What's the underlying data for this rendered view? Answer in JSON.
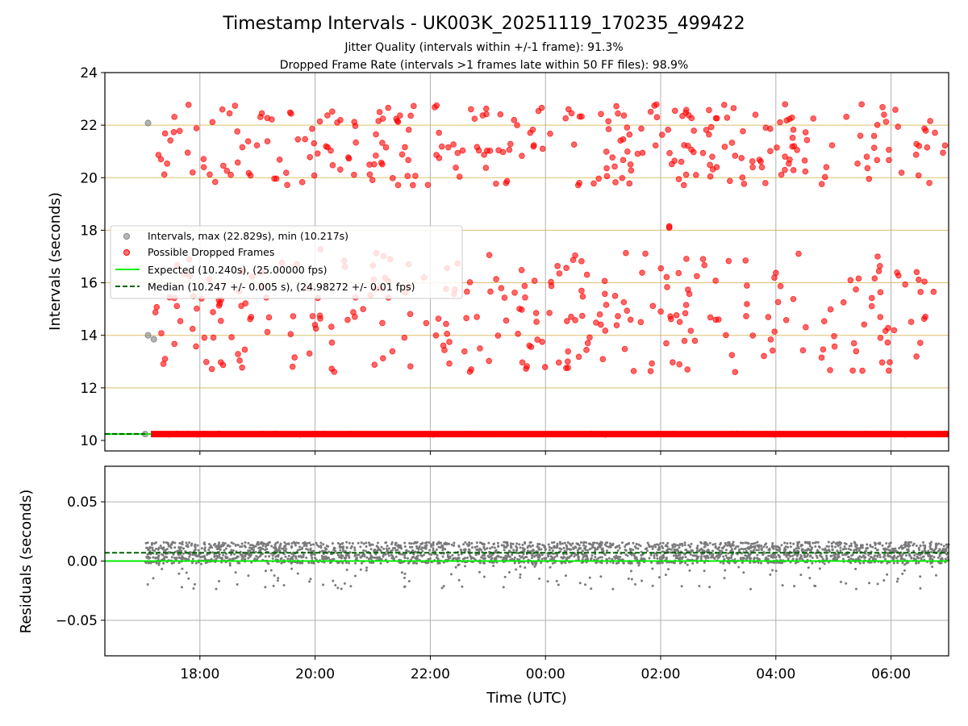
{
  "chart_data": [
    {
      "type": "scatter",
      "title": "Timestamp Intervals - UK003K_20251119_170235_499422",
      "subtitles": [
        "Jitter Quality (intervals within +/-1 frame): 91.3%",
        "Dropped Frame Rate (intervals >1 frames late within 50 FF files): 98.9%"
      ],
      "xlabel": "",
      "ylabel": "Intervals (seconds)",
      "x_start_utc": "16:20",
      "x_end_utc": "07:00",
      "x_unit": "hours since 00:00 UTC of first day",
      "xlim": [
        16.35,
        31.0
      ],
      "ylim": [
        9.6,
        24.0
      ],
      "yticks": [
        "10",
        "12",
        "14",
        "16",
        "18",
        "20",
        "22",
        "24"
      ],
      "gold_gridlines": [
        10.24,
        12.0,
        14.0,
        16.0,
        18.0,
        20.0,
        22.0
      ],
      "series": [
        {
          "name": "Intervals, max (22.829s), min (10.217s)",
          "color": "#808080",
          "points": [
            [
              17.1,
              22.08
            ],
            [
              17.1,
              14.0
            ],
            [
              17.2,
              13.85
            ],
            [
              17.05,
              10.24
            ]
          ]
        },
        {
          "name": "Possible Dropped Frames",
          "color": "#ff0000",
          "band_low": {
            "min": 12.6,
            "max": 17.4
          },
          "band_high": {
            "min": 19.7,
            "max": 22.8
          },
          "baseline_value": 10.24,
          "outliers": [
            [
              26.15,
              18.15
            ],
            [
              26.15,
              18.1
            ]
          ]
        },
        {
          "name": "Expected (10.240s), (25.00000 fps)",
          "color": "#00ee00",
          "value": 10.24
        },
        {
          "name": "Median (10.247 +/- 0.005 s), (24.98272 +/- 0.01 fps)",
          "color": "#006400",
          "value": 10.247
        }
      ],
      "legend_position": "center-left",
      "legend": [
        "Intervals, max (22.829s), min (10.217s)",
        "Possible Dropped Frames",
        "Expected (10.240s), (25.00000 fps)",
        "Median (10.247 +/- 0.005 s), (24.98272 +/- 0.01 fps)"
      ]
    },
    {
      "type": "scatter",
      "title": "",
      "xlabel": "Time (UTC)",
      "ylabel": "Residuals (seconds)",
      "xlim": [
        16.35,
        31.0
      ],
      "ylim": [
        -0.08,
        0.08
      ],
      "xticks": [
        {
          "value": 18,
          "label": "18:00"
        },
        {
          "value": 20,
          "label": "20:00"
        },
        {
          "value": 22,
          "label": "22:00"
        },
        {
          "value": 24,
          "label": "00:00"
        },
        {
          "value": 26,
          "label": "02:00"
        },
        {
          "value": 28,
          "label": "04:00"
        },
        {
          "value": 30,
          "label": "06:00"
        }
      ],
      "yticks": [
        {
          "value": 0.05,
          "label": "0.05"
        },
        {
          "value": 0.0,
          "label": "0.00"
        },
        {
          "value": -0.05,
          "label": "−0.05"
        }
      ],
      "expected_line": 0.0,
      "median_line": 0.007,
      "residual_band": {
        "center": 0.007,
        "spread": 0.01,
        "min": -0.024,
        "max": 0.019
      },
      "x_start": 17.05
    }
  ]
}
